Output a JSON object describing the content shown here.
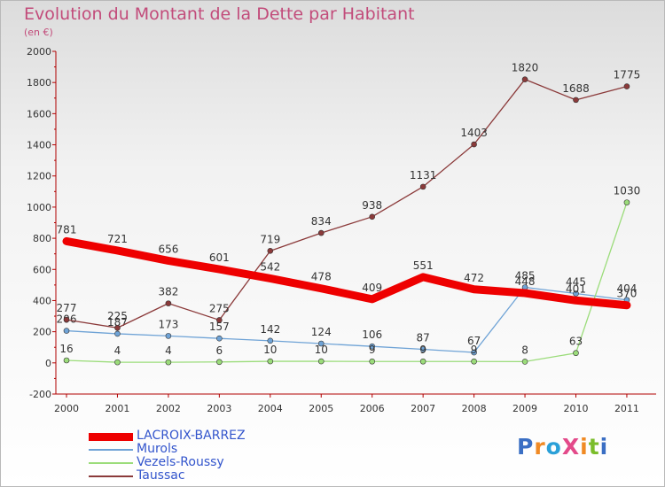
{
  "title": "Evolution du Montant de la Dette par Habitant",
  "unit": "(en €)",
  "logo": {
    "text": "ProXiti",
    "letter_colors": [
      "#3b6fc4",
      "#f08a24",
      "#2aa0d8",
      "#e34a8a",
      "#f08a24",
      "#7bbd2b",
      "#3b6fc4"
    ]
  },
  "chart_data": {
    "type": "line",
    "x": [
      "2000",
      "2001",
      "2002",
      "2003",
      "2004",
      "2005",
      "2006",
      "2007",
      "2008",
      "2009",
      "2010",
      "2011"
    ],
    "xlabel": "",
    "ylabel": "",
    "ylim": [
      -200,
      2000
    ],
    "yticks": [
      -200,
      0,
      200,
      400,
      600,
      800,
      1000,
      1200,
      1400,
      1600,
      1800,
      2000
    ],
    "ytick_labels": [
      "-200",
      "0",
      "200",
      "400",
      "600",
      "800",
      "1000",
      "1200",
      "1400",
      "1600",
      "1800",
      "2000"
    ],
    "grid": false,
    "legend_position": "bottom-left",
    "series": [
      {
        "name": "LACROIX-BARREZ",
        "color": "#ee0000",
        "values": [
          781,
          721,
          656,
          601,
          542,
          478,
          409,
          551,
          472,
          448,
          401,
          370
        ],
        "labels": [
          "781",
          "721",
          "656",
          "601",
          "542",
          "478",
          "409",
          "551",
          "472",
          "448",
          "401",
          "370"
        ]
      },
      {
        "name": "Murols",
        "color": "#6fa3d6",
        "values": [
          206,
          187,
          173,
          157,
          142,
          124,
          106,
          87,
          67,
          485,
          445,
          404
        ],
        "labels": [
          "206",
          "187",
          "173",
          "157",
          "142",
          "124",
          "106",
          "87",
          "67",
          "485",
          "445",
          "404"
        ]
      },
      {
        "name": "Vezels-Roussy",
        "color": "#9bdc7a",
        "values": [
          16,
          4,
          4,
          6,
          10,
          10,
          9,
          9,
          9,
          8,
          63,
          1030
        ],
        "labels": [
          "16",
          "4",
          "4",
          "6",
          "10",
          "10",
          "9",
          "9",
          "9",
          "8",
          "63",
          "1030"
        ]
      },
      {
        "name": "Taussac",
        "color": "#8b3a3a",
        "values": [
          277,
          225,
          382,
          275,
          719,
          834,
          938,
          1131,
          1403,
          1820,
          1688,
          1775
        ],
        "labels": [
          "277",
          "225",
          "382",
          "275",
          "719",
          "834",
          "938",
          "1131",
          "1403",
          "1820",
          "1688",
          "1775"
        ]
      }
    ]
  }
}
